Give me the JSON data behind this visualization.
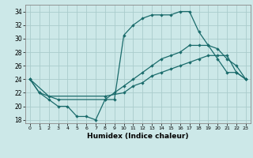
{
  "xlabel": "Humidex (Indice chaleur)",
  "background_color": "#cce8e8",
  "grid_color": "#aacccc",
  "line_color": "#1a6b6b",
  "xlim": [
    -0.5,
    23.5
  ],
  "ylim": [
    17.5,
    35
  ],
  "yticks": [
    18,
    20,
    22,
    24,
    26,
    28,
    30,
    32,
    34
  ],
  "xticks": [
    0,
    1,
    2,
    3,
    4,
    5,
    6,
    7,
    8,
    9,
    10,
    11,
    12,
    13,
    14,
    15,
    16,
    17,
    18,
    19,
    20,
    21,
    22,
    23
  ],
  "line1_x": [
    0,
    1,
    2,
    3,
    4,
    5,
    6,
    7,
    8,
    9,
    10,
    11,
    12,
    13,
    14,
    15,
    16,
    17,
    18,
    19,
    20,
    21,
    22,
    23
  ],
  "line1_y": [
    24,
    22,
    21,
    20,
    20,
    18.5,
    18.5,
    18,
    21,
    21,
    30.5,
    32,
    33,
    33.5,
    33.5,
    33.5,
    34,
    34,
    31,
    29,
    27,
    25,
    25,
    24
  ],
  "line2_x": [
    0,
    1,
    3,
    8,
    9,
    10,
    11,
    12,
    13,
    14,
    15,
    16,
    17,
    18,
    19,
    20,
    21,
    22,
    23
  ],
  "line2_y": [
    24,
    22,
    21,
    21,
    22,
    23,
    24,
    25,
    26,
    27,
    27.5,
    28,
    29,
    29,
    29,
    28.5,
    27,
    26,
    24
  ],
  "line3_x": [
    0,
    2,
    8,
    10,
    11,
    12,
    13,
    14,
    15,
    16,
    17,
    18,
    19,
    20,
    21,
    22,
    23
  ],
  "line3_y": [
    24,
    21.5,
    21.5,
    22,
    23,
    23.5,
    24.5,
    25,
    25.5,
    26,
    26.5,
    27,
    27.5,
    27.5,
    27.5,
    25,
    24
  ]
}
